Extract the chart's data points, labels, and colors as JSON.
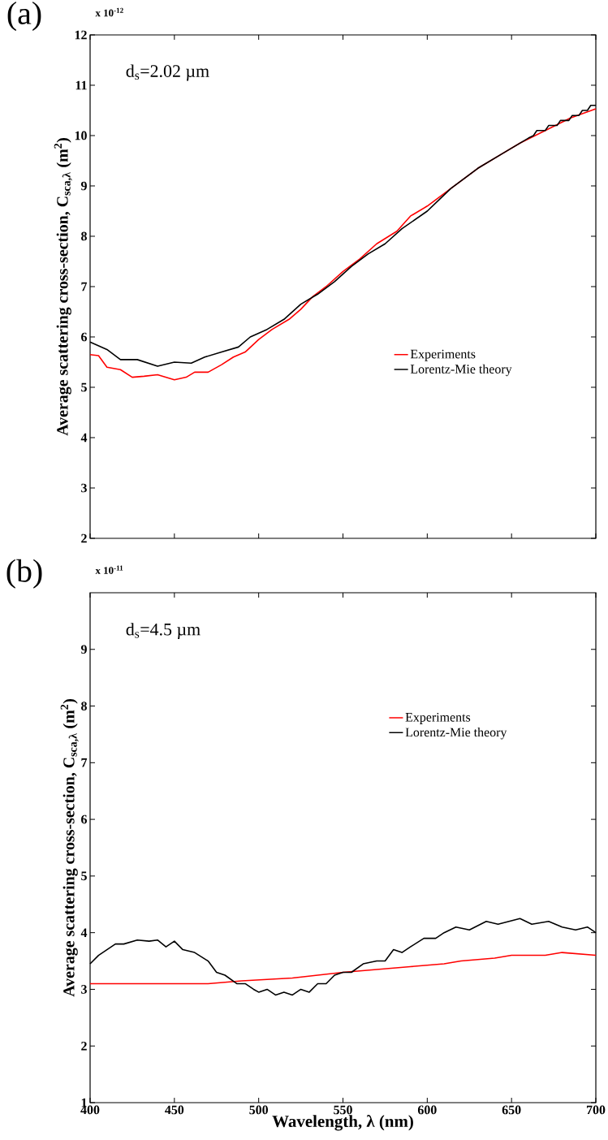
{
  "chart_data": [
    {
      "type": "line",
      "ylabel": "Average scattering cross-section, C$_{sca,λ}$ (m$^{2}$)",
      "annotations": [
        "(a)",
        "x 10$^{-12}$",
        "d$_{s}$=2.02 µm"
      ],
      "xlim": [
        400,
        700
      ],
      "xticks": [
        400,
        450,
        500,
        550,
        600,
        650,
        700
      ],
      "ylim": [
        2,
        12
      ],
      "yticks": [
        2,
        3,
        4,
        5,
        6,
        7,
        8,
        9,
        10,
        11,
        12
      ],
      "tick_labels": "y",
      "legend": "right",
      "marker": "none",
      "line_style": "solid",
      "series": [
        {
          "name": "Experiments",
          "color": "#ff0000",
          "x": [
            400,
            405,
            410,
            418,
            425,
            432,
            440,
            450,
            457,
            462,
            470,
            478,
            485,
            492,
            500,
            508,
            518,
            525,
            532,
            540,
            550,
            560,
            570,
            582,
            590,
            600,
            614,
            630,
            645,
            655,
            670,
            685,
            700
          ],
          "values": [
            5.65,
            5.63,
            5.4,
            5.35,
            5.2,
            5.22,
            5.25,
            5.15,
            5.2,
            5.3,
            5.3,
            5.45,
            5.6,
            5.7,
            5.95,
            6.15,
            6.35,
            6.55,
            6.8,
            7.0,
            7.3,
            7.55,
            7.85,
            8.1,
            8.4,
            8.6,
            8.95,
            9.35,
            9.65,
            9.85,
            10.1,
            10.35,
            10.53
          ]
        },
        {
          "name": "Lorentz-Mie theory",
          "color": "#000000",
          "x": [
            400,
            410,
            418,
            428,
            440,
            450,
            460,
            468,
            478,
            488,
            495,
            505,
            515,
            525,
            535,
            545,
            555,
            565,
            575,
            585,
            600,
            614,
            630,
            645,
            660,
            663,
            665,
            670,
            672,
            677,
            679,
            684,
            686,
            690,
            692,
            695,
            697,
            700
          ],
          "values": [
            5.9,
            5.75,
            5.55,
            5.55,
            5.42,
            5.5,
            5.48,
            5.6,
            5.7,
            5.8,
            6.0,
            6.15,
            6.35,
            6.65,
            6.85,
            7.1,
            7.4,
            7.65,
            7.85,
            8.15,
            8.5,
            8.95,
            9.35,
            9.65,
            9.95,
            10.0,
            10.1,
            10.1,
            10.2,
            10.2,
            10.3,
            10.3,
            10.4,
            10.4,
            10.5,
            10.5,
            10.6,
            10.6
          ]
        }
      ]
    },
    {
      "type": "line",
      "xlabel": "Wavelength, λ (nm)",
      "ylabel": "Average scattering cross-section, C$_{sca,λ}$ (m$^{2}$)",
      "annotations": [
        "(b)",
        "x 10$^{-11}$",
        "d$_{s}$=4.5 µm"
      ],
      "xlim": [
        400,
        700
      ],
      "xticks": [
        400,
        450,
        500,
        550,
        600,
        650,
        700
      ],
      "ylim": [
        1,
        10
      ],
      "yticks": [
        1,
        2,
        3,
        4,
        5,
        6,
        7,
        8,
        9
      ],
      "legend": "top right",
      "marker": "none",
      "line_style": "solid",
      "series": [
        {
          "name": "Experiments",
          "color": "#ff0000",
          "x": [
            400,
            420,
            440,
            470,
            490,
            520,
            550,
            570,
            590,
            610,
            620,
            640,
            650,
            670,
            680,
            700
          ],
          "values": [
            3.1,
            3.1,
            3.1,
            3.1,
            3.15,
            3.2,
            3.3,
            3.35,
            3.4,
            3.45,
            3.5,
            3.55,
            3.6,
            3.6,
            3.65,
            3.6
          ]
        },
        {
          "name": "Lorentz-Mie theory",
          "color": "#000000",
          "x": [
            400,
            405,
            410,
            415,
            420,
            428,
            435,
            440,
            445,
            450,
            455,
            462,
            470,
            475,
            480,
            487,
            492,
            497,
            500,
            505,
            510,
            515,
            520,
            525,
            530,
            535,
            540,
            545,
            550,
            555,
            562,
            570,
            575,
            580,
            585,
            590,
            598,
            605,
            610,
            617,
            625,
            635,
            642,
            655,
            662,
            672,
            680,
            688,
            695,
            700
          ],
          "values": [
            3.45,
            3.6,
            3.7,
            3.8,
            3.8,
            3.87,
            3.85,
            3.87,
            3.75,
            3.85,
            3.7,
            3.65,
            3.5,
            3.3,
            3.25,
            3.1,
            3.1,
            3.0,
            2.95,
            3.0,
            2.9,
            2.95,
            2.9,
            3.0,
            2.95,
            3.1,
            3.1,
            3.25,
            3.3,
            3.3,
            3.45,
            3.5,
            3.5,
            3.7,
            3.65,
            3.75,
            3.9,
            3.9,
            4.0,
            4.1,
            4.05,
            4.2,
            4.15,
            4.25,
            4.15,
            4.2,
            4.1,
            4.05,
            4.1,
            4.0
          ]
        }
      ]
    }
  ]
}
